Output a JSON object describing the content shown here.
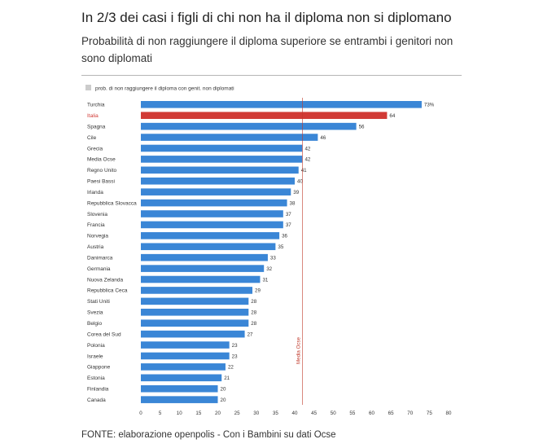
{
  "header": {
    "title": "In 2/3 dei casi i figli di chi non ha il diploma non si diplomano",
    "subtitle": "Probabilità di non raggiungere il diploma superiore se entrambi i genitori non sono diplomati"
  },
  "footer": {
    "source": "FONTE: elaborazione openpolis - Con i Bambini su dati Ocse"
  },
  "chart_data": {
    "type": "bar",
    "orientation": "horizontal",
    "title": "Probabilità di non raggiungere il diploma superiore se entrambi i genitori non sono diplomati",
    "legend": {
      "label": "prob. di non raggiungere il diploma con genit. non diplomati",
      "position": "top-left",
      "swatch_color": "#cccccc"
    },
    "categories": [
      "Turchia",
      "Italia",
      "Spagna",
      "Cile",
      "Grecia",
      "Media Ocse",
      "Regno Unito",
      "Paesi Bassi",
      "Irlanda",
      "Repubblica Slovacca",
      "Slovenia",
      "Francia",
      "Norvegia",
      "Austria",
      "Danimarca",
      "Germania",
      "Nuova Zelanda",
      "Repubblica Ceca",
      "Stati Uniti",
      "Svezia",
      "Belgio",
      "Corea del Sud",
      "Polonia",
      "Israele",
      "Giappone",
      "Estonia",
      "Finlandia",
      "Canada"
    ],
    "values": [
      73,
      64,
      56,
      46,
      42,
      42,
      41,
      40,
      39,
      38,
      37,
      37,
      36,
      35,
      33,
      32,
      31,
      29,
      28,
      28,
      28,
      27,
      23,
      23,
      22,
      21,
      20,
      20
    ],
    "value_labels": [
      "73%",
      "64",
      "56",
      "46",
      "42",
      "42",
      "41",
      "40",
      "39",
      "38",
      "37",
      "37",
      "36",
      "35",
      "33",
      "32",
      "31",
      "29",
      "28",
      "28",
      "28",
      "27",
      "23",
      "23",
      "22",
      "21",
      "20",
      "20"
    ],
    "highlight_index": 1,
    "xlim": [
      0,
      80
    ],
    "xticks": [
      0,
      5,
      10,
      15,
      20,
      25,
      30,
      35,
      40,
      45,
      50,
      55,
      60,
      65,
      70,
      75,
      80
    ],
    "xlabel": "",
    "ylabel": "",
    "reference_line": {
      "value": 42,
      "label": "Media Ocse"
    },
    "colors": {
      "bar": "#3a86d6",
      "highlight": "#d13a36",
      "reference": "#c0392b",
      "tick_text": "#333333"
    }
  }
}
